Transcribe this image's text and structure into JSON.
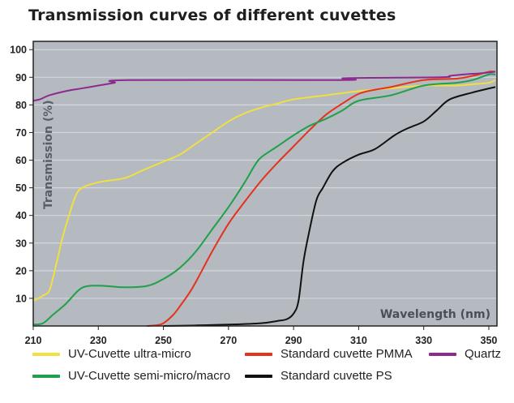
{
  "chart_data": {
    "type": "line",
    "title": "Transmission curves of different cuvettes",
    "xlabel": "Wavelength (nm)",
    "ylabel": "Transmission (%)",
    "xlim": [
      210,
      352.5
    ],
    "ylim": [
      0,
      103
    ],
    "xticks": [
      210,
      230,
      250,
      270,
      290,
      310,
      330,
      350
    ],
    "yticks": [
      10,
      20,
      30,
      40,
      50,
      60,
      70,
      80,
      90,
      100
    ],
    "grid": true,
    "legend_position": "bottom",
    "plot_background": "#b5b9c0",
    "series": [
      {
        "name": "UV-Cuvette ultra-micro",
        "color": "#f0e040",
        "x": [
          210,
          213,
          215,
          217,
          219,
          221,
          223,
          225,
          230,
          238,
          243,
          250,
          255,
          260,
          265,
          270,
          275,
          280,
          285,
          290,
          300,
          310,
          320,
          330,
          340,
          345,
          350,
          352
        ],
        "y": [
          9,
          11,
          13,
          22,
          32,
          40,
          47,
          50,
          52,
          53.5,
          56,
          59.5,
          62,
          66,
          70,
          74,
          77,
          79,
          80.5,
          82,
          83.5,
          85,
          86,
          87,
          87,
          87.5,
          88,
          89
        ]
      },
      {
        "name": "Standard cuvette PMMA",
        "color": "#e4321e",
        "x": [
          245,
          248,
          250,
          253,
          255,
          258,
          260,
          265,
          270,
          275,
          280,
          285,
          290,
          295,
          300,
          305,
          310,
          315,
          320,
          330,
          340,
          345,
          350,
          352
        ],
        "y": [
          0,
          0.3,
          1,
          4,
          7,
          12,
          16,
          27,
          37,
          45,
          52.5,
          59,
          65,
          71,
          76.5,
          80.5,
          84,
          85.5,
          86.5,
          89,
          89.5,
          90.5,
          92,
          92
        ]
      },
      {
        "name": "Quartz",
        "color": "#8e2a8e",
        "x": [
          210,
          212,
          213,
          215,
          220,
          225,
          230,
          235,
          239.5,
          305,
          306,
          335,
          338,
          342,
          348,
          352
        ],
        "y": [
          81.5,
          82,
          82.5,
          83.5,
          85,
          86,
          87,
          88,
          89,
          89,
          89.7,
          90,
          90.5,
          91,
          91.5,
          92
        ]
      },
      {
        "name": "UV-Cuvette semi-micro/macro",
        "color": "#1fa04a",
        "x": [
          210,
          213,
          216,
          220,
          224,
          227,
          232,
          238,
          245,
          250,
          255,
          260,
          265,
          270,
          275,
          278,
          280,
          285,
          290,
          295,
          300,
          305,
          310,
          320,
          330,
          340,
          345,
          350,
          352
        ],
        "y": [
          0.5,
          1,
          4,
          8,
          13,
          14.5,
          14.5,
          14,
          14.5,
          17,
          21,
          27,
          35,
          43,
          52,
          58,
          61,
          65,
          69,
          72.5,
          75,
          78,
          81.5,
          83.5,
          87,
          88,
          89,
          91,
          91
        ]
      },
      {
        "name": "Standard cuvette PS",
        "color": "#111111",
        "x": [
          250,
          260,
          270,
          280,
          285,
          288,
          290,
          291.5,
          293,
          294.6,
          297,
          299,
          302,
          305,
          310,
          315,
          321,
          325,
          330,
          334,
          338,
          345,
          352
        ],
        "y": [
          0,
          0.2,
          0.5,
          1,
          1.8,
          2.5,
          4.5,
          9,
          23,
          33,
          45.5,
          50,
          56,
          59,
          62,
          64,
          69,
          71.5,
          74,
          78,
          82,
          84.5,
          86.5
        ]
      }
    ]
  },
  "legend": [
    {
      "label": "UV-Cuvette ultra-micro",
      "color": "#f0e040"
    },
    {
      "label": "Standard cuvette PMMA",
      "color": "#e4321e"
    },
    {
      "label": "Quartz",
      "color": "#8e2a8e"
    },
    {
      "label": "UV-Cuvette semi-micro/macro",
      "color": "#1fa04a"
    },
    {
      "label": "Standard cuvette PS",
      "color": "#111111"
    }
  ]
}
